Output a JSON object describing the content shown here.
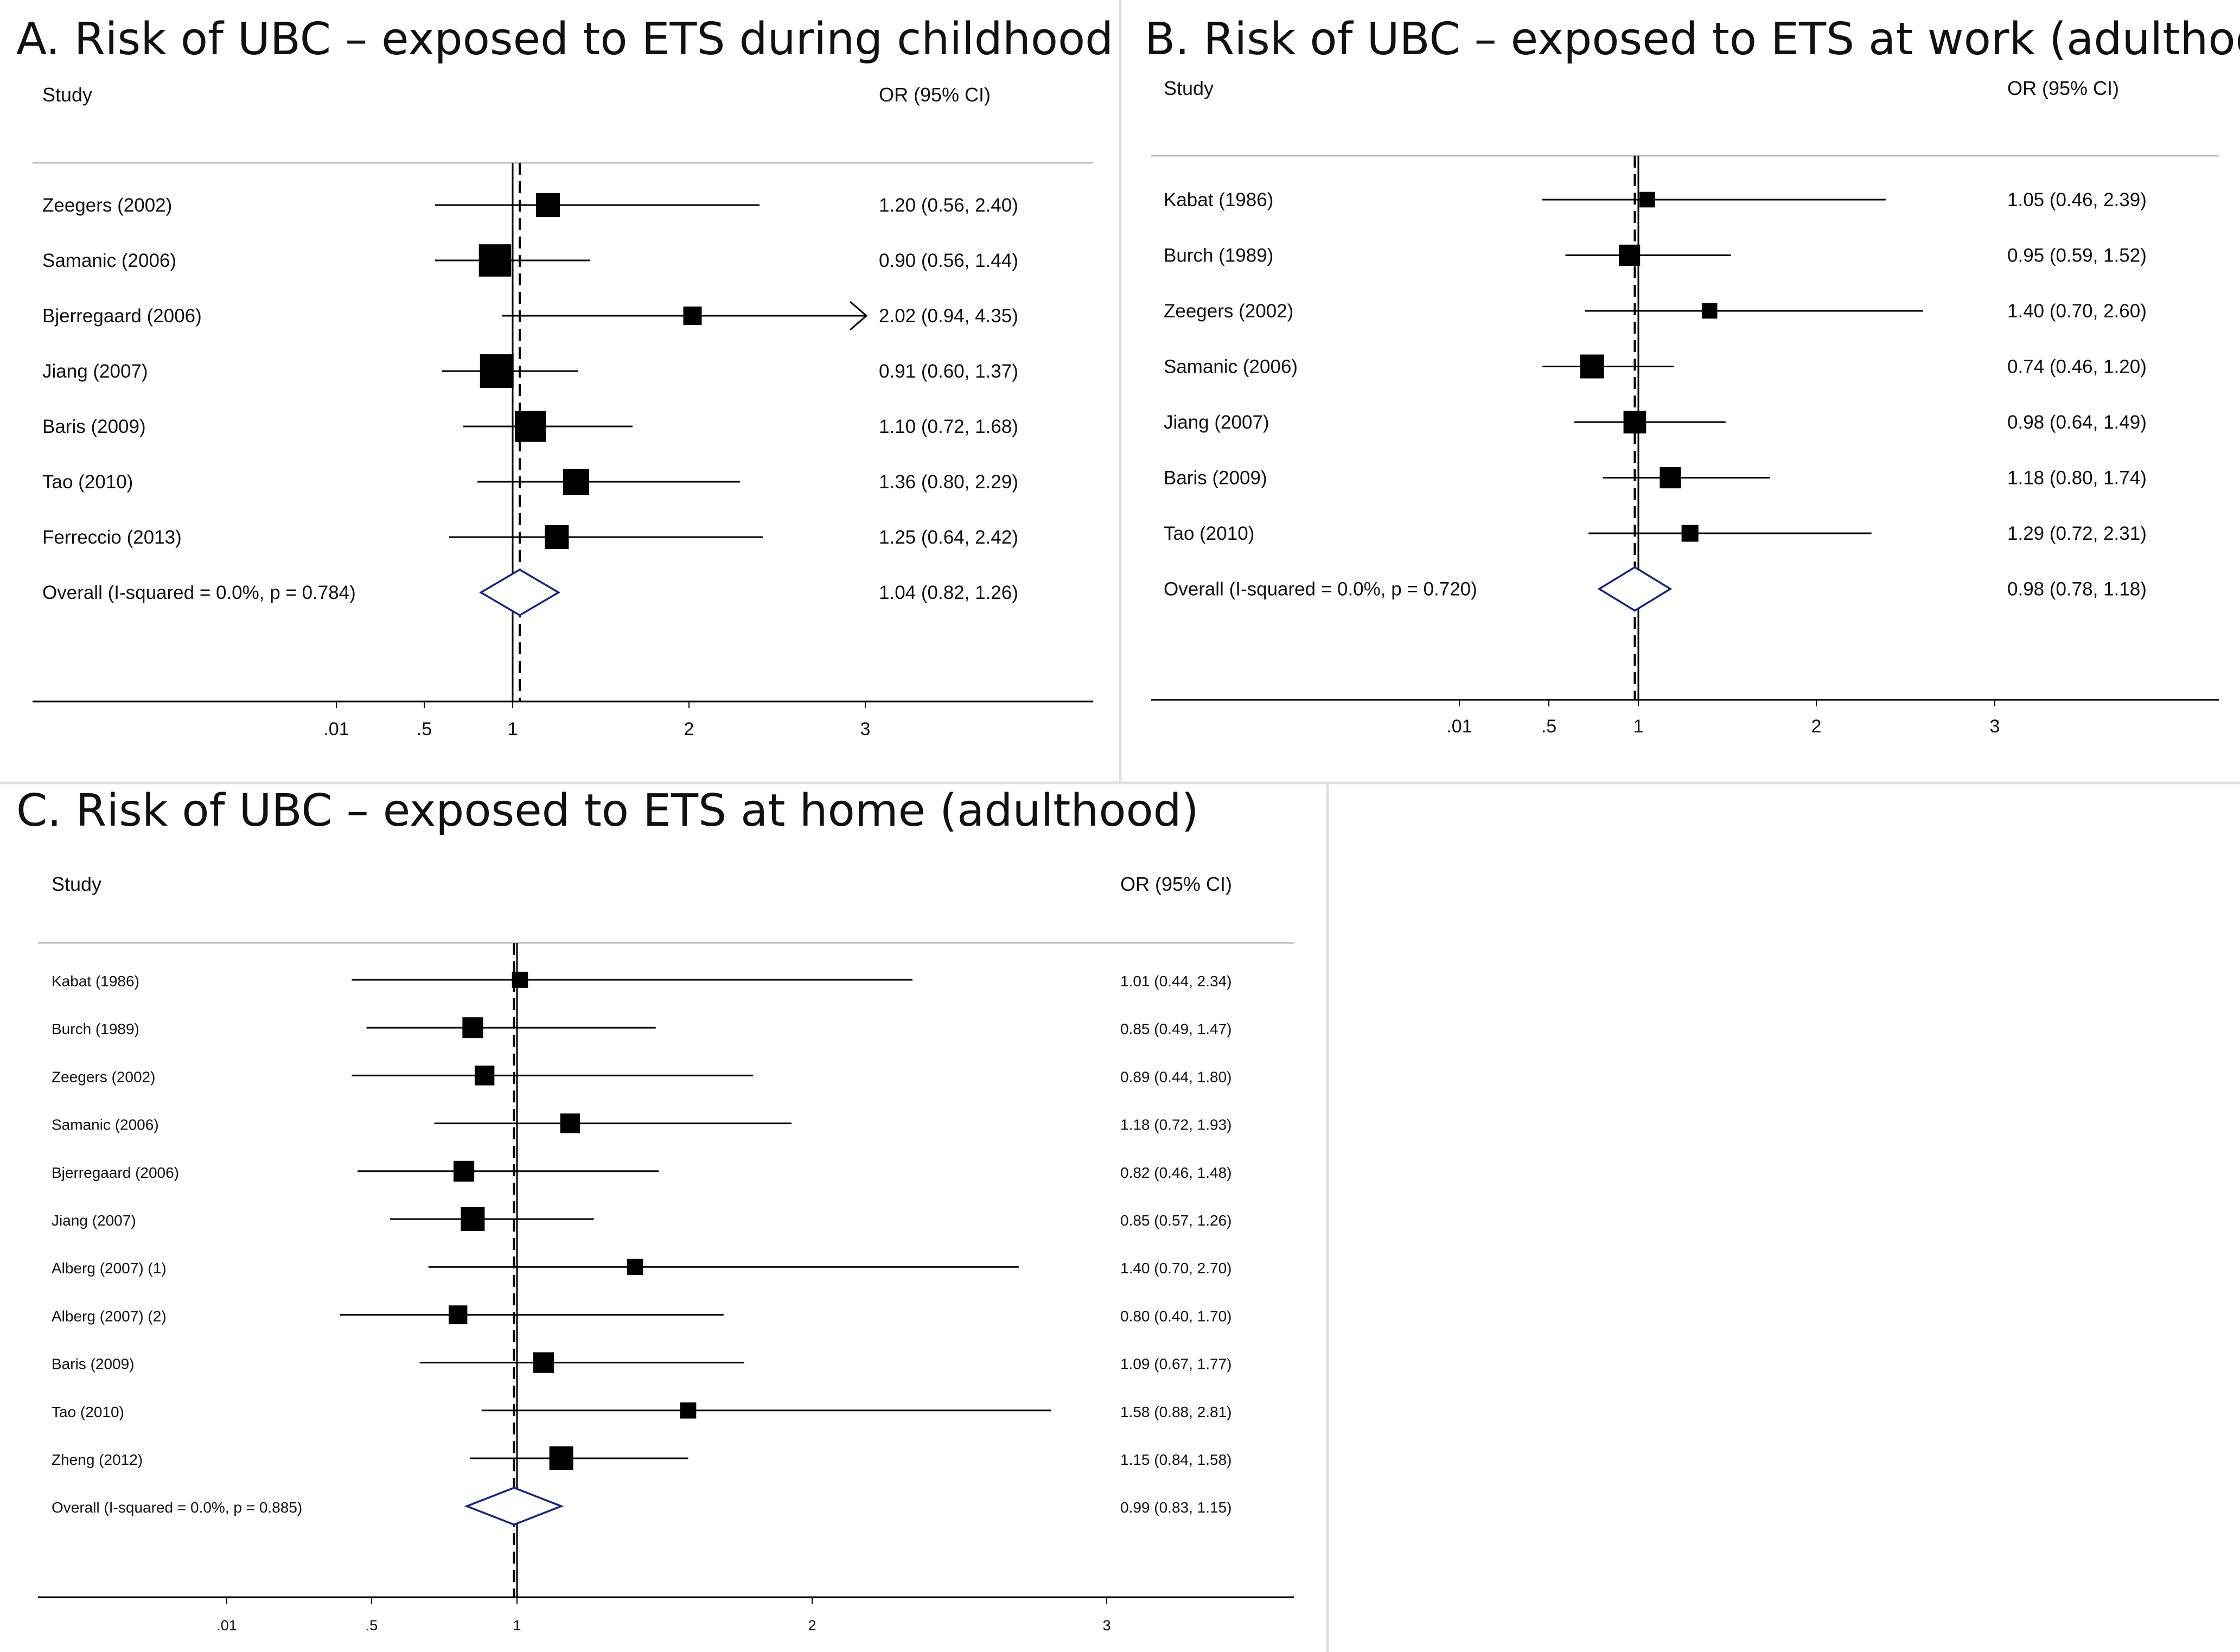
{
  "figure": {
    "colors": {
      "ink": "#000000",
      "diamond": "#1a237e",
      "rule": "#bdbdbd",
      "divider": "#e0e0e0"
    }
  },
  "chart_data": [
    {
      "id": "A",
      "type": "forest",
      "title": "A. Risk of UBC – exposed to ETS during childhood",
      "column_headers": {
        "study": "Study",
        "effect": "OR (95% CI)"
      },
      "x_ticks": [
        ".01",
        ".5",
        "1",
        "2",
        "3"
      ],
      "reference_line": 1,
      "pooled_line": 1.04,
      "studies": [
        {
          "name": "Zeegers (2002)",
          "or": 1.2,
          "lo": 0.56,
          "hi": 2.4,
          "label": "1.20 (0.56, 2.40)",
          "weight": 3
        },
        {
          "name": "Samanic (2006)",
          "or": 0.9,
          "lo": 0.56,
          "hi": 1.44,
          "label": "0.90 (0.56, 1.44)",
          "weight": 8
        },
        {
          "name": "Bjerregaard (2006)",
          "or": 2.02,
          "lo": 0.94,
          "hi": 4.35,
          "label": "2.02 (0.94, 4.35)",
          "weight": 1,
          "arrow_right": true
        },
        {
          "name": "Jiang (2007)",
          "or": 0.91,
          "lo": 0.6,
          "hi": 1.37,
          "label": "0.91 (0.60, 1.37)",
          "weight": 9
        },
        {
          "name": "Baris (2009)",
          "or": 1.1,
          "lo": 0.72,
          "hi": 1.68,
          "label": "1.10 (0.72, 1.68)",
          "weight": 7
        },
        {
          "name": "Tao (2010)",
          "or": 1.36,
          "lo": 0.8,
          "hi": 2.29,
          "label": "1.36 (0.80, 2.29)",
          "weight": 4
        },
        {
          "name": "Ferreccio (2013)",
          "or": 1.25,
          "lo": 0.64,
          "hi": 2.42,
          "label": "1.25 (0.64, 2.42)",
          "weight": 3
        }
      ],
      "overall": {
        "name": "Overall  (I-squared = 0.0%, p = 0.784)",
        "or": 1.04,
        "lo": 0.82,
        "hi": 1.26,
        "label": "1.04 (0.82, 1.26)"
      }
    },
    {
      "id": "B",
      "type": "forest",
      "title": "B. Risk of UBC – exposed to ETS at work (adulthood)",
      "column_headers": {
        "study": "Study",
        "effect": "OR (95% CI)"
      },
      "x_ticks": [
        ".01",
        ".5",
        "1",
        "2",
        "3"
      ],
      "reference_line": 1,
      "pooled_line": 0.98,
      "studies": [
        {
          "name": "Kabat (1986)",
          "or": 1.05,
          "lo": 0.46,
          "hi": 2.39,
          "label": "1.05 (0.46, 2.39)",
          "weight": 1
        },
        {
          "name": "Burch (1989)",
          "or": 0.95,
          "lo": 0.59,
          "hi": 1.52,
          "label": "0.95 (0.59, 1.52)",
          "weight": 4
        },
        {
          "name": "Zeegers (2002)",
          "or": 1.4,
          "lo": 0.7,
          "hi": 2.6,
          "label": "1.40 (0.70, 2.60)",
          "weight": 1
        },
        {
          "name": "Samanic (2006)",
          "or": 0.74,
          "lo": 0.46,
          "hi": 1.2,
          "label": "0.74 (0.46, 1.20)",
          "weight": 6
        },
        {
          "name": "Jiang (2007)",
          "or": 0.98,
          "lo": 0.64,
          "hi": 1.49,
          "label": "0.98 (0.64, 1.49)",
          "weight": 5
        },
        {
          "name": "Baris (2009)",
          "or": 1.18,
          "lo": 0.8,
          "hi": 1.74,
          "label": "1.18 (0.80, 1.74)",
          "weight": 4
        },
        {
          "name": "Tao (2010)",
          "or": 1.29,
          "lo": 0.72,
          "hi": 2.31,
          "label": "1.29 (0.72, 2.31)",
          "weight": 1.5
        }
      ],
      "overall": {
        "name": "Overall  (I-squared = 0.0%, p = 0.720)",
        "or": 0.98,
        "lo": 0.78,
        "hi": 1.18,
        "label": "0.98 (0.78, 1.18)"
      }
    },
    {
      "id": "C",
      "type": "forest",
      "title": "C. Risk of UBC – exposed to ETS at home (adulthood)",
      "column_headers": {
        "study": "Study",
        "effect": "OR (95% CI)"
      },
      "x_ticks": [
        ".01",
        ".5",
        "1",
        "2",
        "3"
      ],
      "reference_line": 1,
      "pooled_line": 0.99,
      "studies": [
        {
          "name": "Kabat (1986)",
          "or": 1.01,
          "lo": 0.44,
          "hi": 2.34,
          "label": "1.01 (0.44, 2.34)",
          "weight": 1
        },
        {
          "name": "Burch (1989)",
          "or": 0.85,
          "lo": 0.49,
          "hi": 1.47,
          "label": "0.85 (0.49, 1.47)",
          "weight": 3
        },
        {
          "name": "Zeegers (2002)",
          "or": 0.89,
          "lo": 0.44,
          "hi": 1.8,
          "label": "0.89 (0.44, 1.80)",
          "weight": 2.5
        },
        {
          "name": "Samanic (2006)",
          "or": 1.18,
          "lo": 0.72,
          "hi": 1.93,
          "label": "1.18 (0.72, 1.93)",
          "weight": 2.5
        },
        {
          "name": "Bjerregaard (2006)",
          "or": 0.82,
          "lo": 0.46,
          "hi": 1.48,
          "label": "0.82 (0.46, 1.48)",
          "weight": 3
        },
        {
          "name": "Jiang (2007)",
          "or": 0.85,
          "lo": 0.57,
          "hi": 1.26,
          "label": "0.85 (0.57, 1.26)",
          "weight": 5
        },
        {
          "name": "Alberg (2007) (1)",
          "or": 1.4,
          "lo": 0.7,
          "hi": 2.7,
          "label": "1.40 (0.70, 2.70)",
          "weight": 1
        },
        {
          "name": "Alberg (2007) (2)",
          "or": 0.8,
          "lo": 0.4,
          "hi": 1.7,
          "label": "0.80 (0.40, 1.70)",
          "weight": 2
        },
        {
          "name": "Baris (2009)",
          "or": 1.09,
          "lo": 0.67,
          "hi": 1.77,
          "label": "1.09 (0.67, 1.77)",
          "weight": 3
        },
        {
          "name": "Tao (2010)",
          "or": 1.58,
          "lo": 0.88,
          "hi": 2.81,
          "label": "1.58 (0.88, 2.81)",
          "weight": 1
        },
        {
          "name": "Zheng (2012)",
          "or": 1.15,
          "lo": 0.84,
          "hi": 1.58,
          "label": "1.15 (0.84, 1.58)",
          "weight": 5
        }
      ],
      "overall": {
        "name": "Overall  (I-squared = 0.0%, p = 0.885)",
        "or": 0.99,
        "lo": 0.83,
        "hi": 1.15,
        "label": "0.99 (0.83, 1.15)"
      }
    }
  ]
}
